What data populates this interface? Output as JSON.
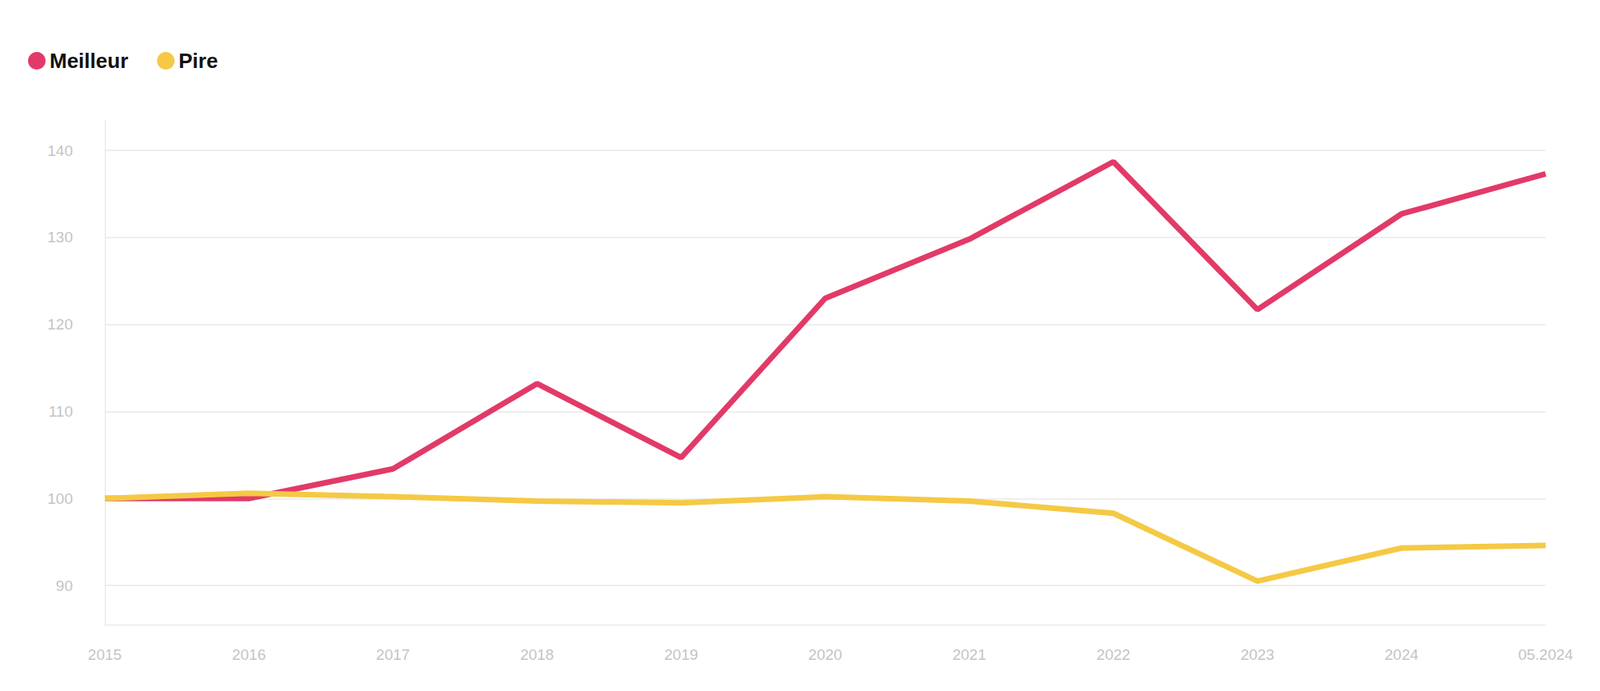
{
  "chart_data": {
    "type": "line",
    "categories": [
      "2015",
      "2016",
      "2017",
      "2018",
      "2019",
      "2020",
      "2021",
      "2022",
      "2023",
      "2024",
      "05.2024"
    ],
    "series": [
      {
        "name": "Meilleur",
        "color": "#e23a68",
        "values": [
          100,
          100,
          103.4,
          113.2,
          104.7,
          123,
          129.8,
          138.7,
          121.7,
          132.7,
          137.3
        ]
      },
      {
        "name": "Pire",
        "color": "#f5c944",
        "values": [
          100,
          100.6,
          100.2,
          99.7,
          99.5,
          100.2,
          99.7,
          98.3,
          90.5,
          94.3,
          94.6
        ]
      }
    ],
    "ylim": [
      85.5,
      143.5
    ],
    "yticks": [
      90,
      100,
      110,
      120,
      130,
      140
    ],
    "grid": true,
    "legend": "top-left"
  }
}
